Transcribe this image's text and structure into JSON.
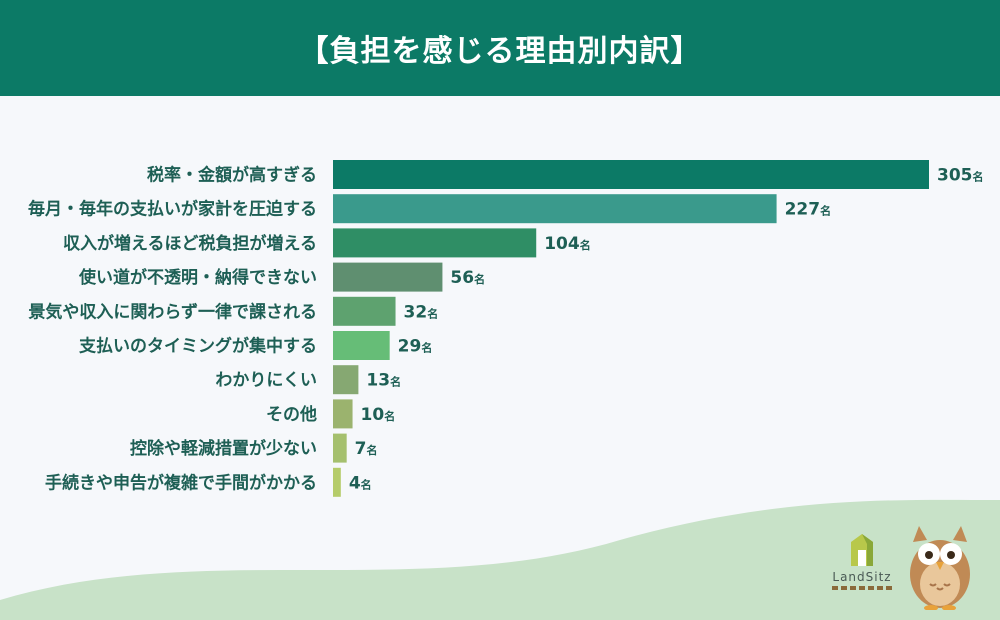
{
  "header": {
    "title": "【負担を感じる理由別内訳】"
  },
  "logo": {
    "text": "LandSitz"
  },
  "chart_data": {
    "type": "bar",
    "orientation": "horizontal",
    "title": "【負担を感じる理由別内訳】",
    "unit": "名",
    "xlim": [
      0,
      305
    ],
    "grid": false,
    "categories": [
      "税率・金額が高すぎる",
      "毎月・毎年の支払いが家計を圧迫する",
      "収入が増えるほど税負担が増える",
      "使い道が不透明・納得できない",
      "景気や収入に関わらず一律で課される",
      "支払いのタイミングが集中する",
      "わかりにくい",
      "その他",
      "控除や軽減措置が少ない",
      "手続きや申告が複雑で手間がかかる"
    ],
    "values": [
      305,
      227,
      104,
      56,
      32,
      29,
      13,
      10,
      7,
      4
    ],
    "colors": [
      "#0c7a66",
      "#3a9a8c",
      "#2f8e65",
      "#5f8f70",
      "#5ea26f",
      "#66bd77",
      "#86a872",
      "#9bb36e",
      "#a5c06e",
      "#b5cc6a"
    ]
  }
}
